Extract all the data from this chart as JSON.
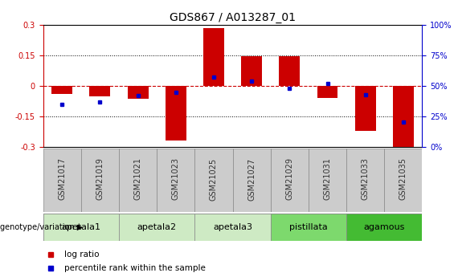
{
  "title": "GDS867 / A013287_01",
  "samples": [
    "GSM21017",
    "GSM21019",
    "GSM21021",
    "GSM21023",
    "GSM21025",
    "GSM21027",
    "GSM21029",
    "GSM21031",
    "GSM21033",
    "GSM21035"
  ],
  "log_ratios": [
    -0.04,
    -0.05,
    -0.065,
    -0.27,
    0.285,
    0.145,
    0.145,
    -0.06,
    -0.22,
    -0.31
  ],
  "percentile_ranks": [
    35,
    37,
    42,
    45,
    57,
    54,
    48,
    52,
    43,
    20
  ],
  "groups": [
    {
      "name": "apetala1",
      "indices": [
        0,
        1
      ],
      "color": "#ceeac4"
    },
    {
      "name": "apetala2",
      "indices": [
        2,
        3
      ],
      "color": "#ceeac4"
    },
    {
      "name": "apetala3",
      "indices": [
        4,
        5
      ],
      "color": "#ceeac4"
    },
    {
      "name": "pistillata",
      "indices": [
        6,
        7
      ],
      "color": "#7dd96d"
    },
    {
      "name": "agamous",
      "indices": [
        8,
        9
      ],
      "color": "#44bb33"
    }
  ],
  "ylim": [
    -0.3,
    0.3
  ],
  "yticks_left": [
    -0.3,
    -0.15,
    0.0,
    0.15,
    0.3
  ],
  "yticks_right": [
    0,
    25,
    50,
    75,
    100
  ],
  "bar_color": "#cc0000",
  "percentile_color": "#0000cc",
  "zero_line_color": "#cc0000",
  "grid_color": "#000000",
  "sample_box_color": "#cccccc",
  "sample_box_edge": "#888888",
  "bar_width": 0.55,
  "title_fontsize": 10,
  "tick_fontsize": 7,
  "label_fontsize": 7.5,
  "group_label_fontsize": 8
}
